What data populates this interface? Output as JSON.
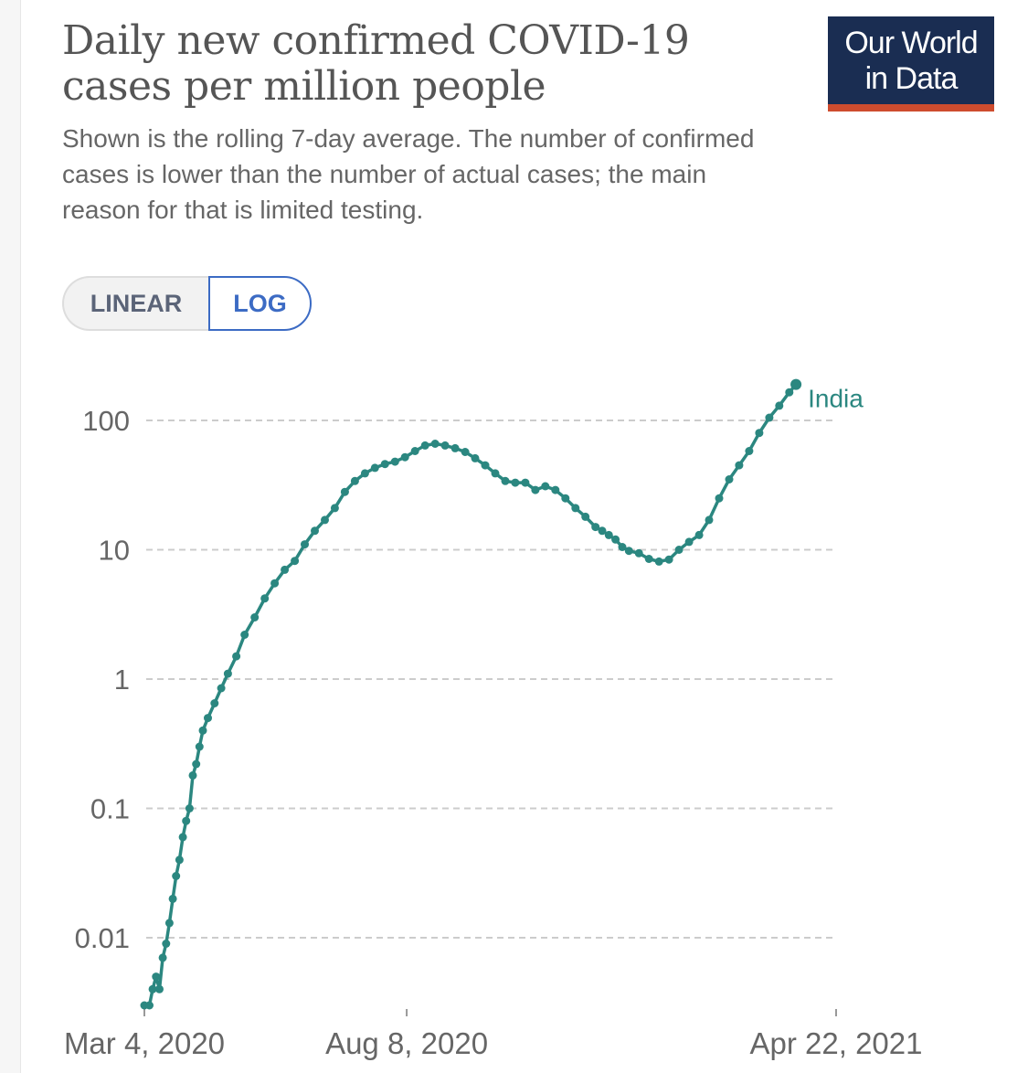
{
  "header": {
    "title": "Daily new confirmed COVID-19 cases per million people",
    "subtitle": "Shown is the rolling 7-day average. The number of confirmed cases is lower than the number of actual cases; the main reason for that is limited testing.",
    "logo_line1": "Our World",
    "logo_line2": "in Data"
  },
  "controls": {
    "linear_label": "LINEAR",
    "log_label": "LOG",
    "active_scale": "LOG"
  },
  "colors": {
    "series": "#2b8780",
    "title": "#555555",
    "grid": "#cccccc",
    "logo_bg": "#1a2d52",
    "logo_accent": "#ce4c2e",
    "toggle_active": "#3c6bc4"
  },
  "chart_data": {
    "type": "line",
    "title": "Daily new confirmed COVID-19 cases per million people",
    "subtitle": "Shown is the rolling 7-day average.",
    "xlabel": "",
    "ylabel": "",
    "yscale": "log",
    "ylim": [
      0.003,
      200
    ],
    "xlim_days": [
      0,
      414
    ],
    "yticks": [
      {
        "value": 100,
        "label": "100"
      },
      {
        "value": 10,
        "label": "10"
      },
      {
        "value": 1,
        "label": "1"
      },
      {
        "value": 0.1,
        "label": "0.1"
      },
      {
        "value": 0.01,
        "label": "0.01"
      }
    ],
    "xticks": [
      {
        "day": 0,
        "label": "Mar 4, 2020"
      },
      {
        "day": 157,
        "label": "Aug 8, 2020"
      },
      {
        "day": 414,
        "label": "Apr 22, 2021"
      }
    ],
    "grid": true,
    "series": [
      {
        "name": "India",
        "color": "#2b8780",
        "points": [
          [
            0,
            0.003
          ],
          [
            3,
            0.003
          ],
          [
            5,
            0.004
          ],
          [
            7,
            0.005
          ],
          [
            9,
            0.004
          ],
          [
            11,
            0.007
          ],
          [
            13,
            0.009
          ],
          [
            15,
            0.013
          ],
          [
            17,
            0.02
          ],
          [
            19,
            0.03
          ],
          [
            21,
            0.04
          ],
          [
            23,
            0.06
          ],
          [
            25,
            0.08
          ],
          [
            27,
            0.1
          ],
          [
            29,
            0.18
          ],
          [
            31,
            0.22
          ],
          [
            33,
            0.3
          ],
          [
            35,
            0.4
          ],
          [
            38,
            0.5
          ],
          [
            42,
            0.65
          ],
          [
            46,
            0.85
          ],
          [
            50,
            1.1
          ],
          [
            55,
            1.5
          ],
          [
            60,
            2.2
          ],
          [
            66,
            3.0
          ],
          [
            72,
            4.2
          ],
          [
            78,
            5.5
          ],
          [
            84,
            7.0
          ],
          [
            90,
            8.2
          ],
          [
            96,
            11
          ],
          [
            102,
            14
          ],
          [
            108,
            17
          ],
          [
            114,
            21
          ],
          [
            120,
            28
          ],
          [
            126,
            34
          ],
          [
            132,
            39
          ],
          [
            138,
            43
          ],
          [
            144,
            46
          ],
          [
            150,
            48
          ],
          [
            156,
            52
          ],
          [
            162,
            58
          ],
          [
            168,
            64
          ],
          [
            174,
            66
          ],
          [
            180,
            64
          ],
          [
            186,
            61
          ],
          [
            192,
            57
          ],
          [
            198,
            51
          ],
          [
            204,
            45
          ],
          [
            210,
            39
          ],
          [
            216,
            34
          ],
          [
            222,
            33
          ],
          [
            228,
            33
          ],
          [
            234,
            29
          ],
          [
            240,
            31
          ],
          [
            246,
            29
          ],
          [
            252,
            25
          ],
          [
            258,
            21
          ],
          [
            264,
            18
          ],
          [
            270,
            15
          ],
          [
            274,
            14
          ],
          [
            278,
            13
          ],
          [
            282,
            12
          ],
          [
            286,
            10.5
          ],
          [
            290,
            9.8
          ],
          [
            296,
            9.4
          ],
          [
            302,
            8.5
          ],
          [
            308,
            8.1
          ],
          [
            314,
            8.4
          ],
          [
            320,
            10
          ],
          [
            326,
            11.5
          ],
          [
            332,
            13
          ],
          [
            338,
            17
          ],
          [
            344,
            25
          ],
          [
            350,
            35
          ],
          [
            356,
            45
          ],
          [
            362,
            58
          ],
          [
            368,
            80
          ],
          [
            374,
            105
          ],
          [
            380,
            130
          ],
          [
            386,
            165
          ],
          [
            390,
            190
          ]
        ]
      }
    ]
  }
}
